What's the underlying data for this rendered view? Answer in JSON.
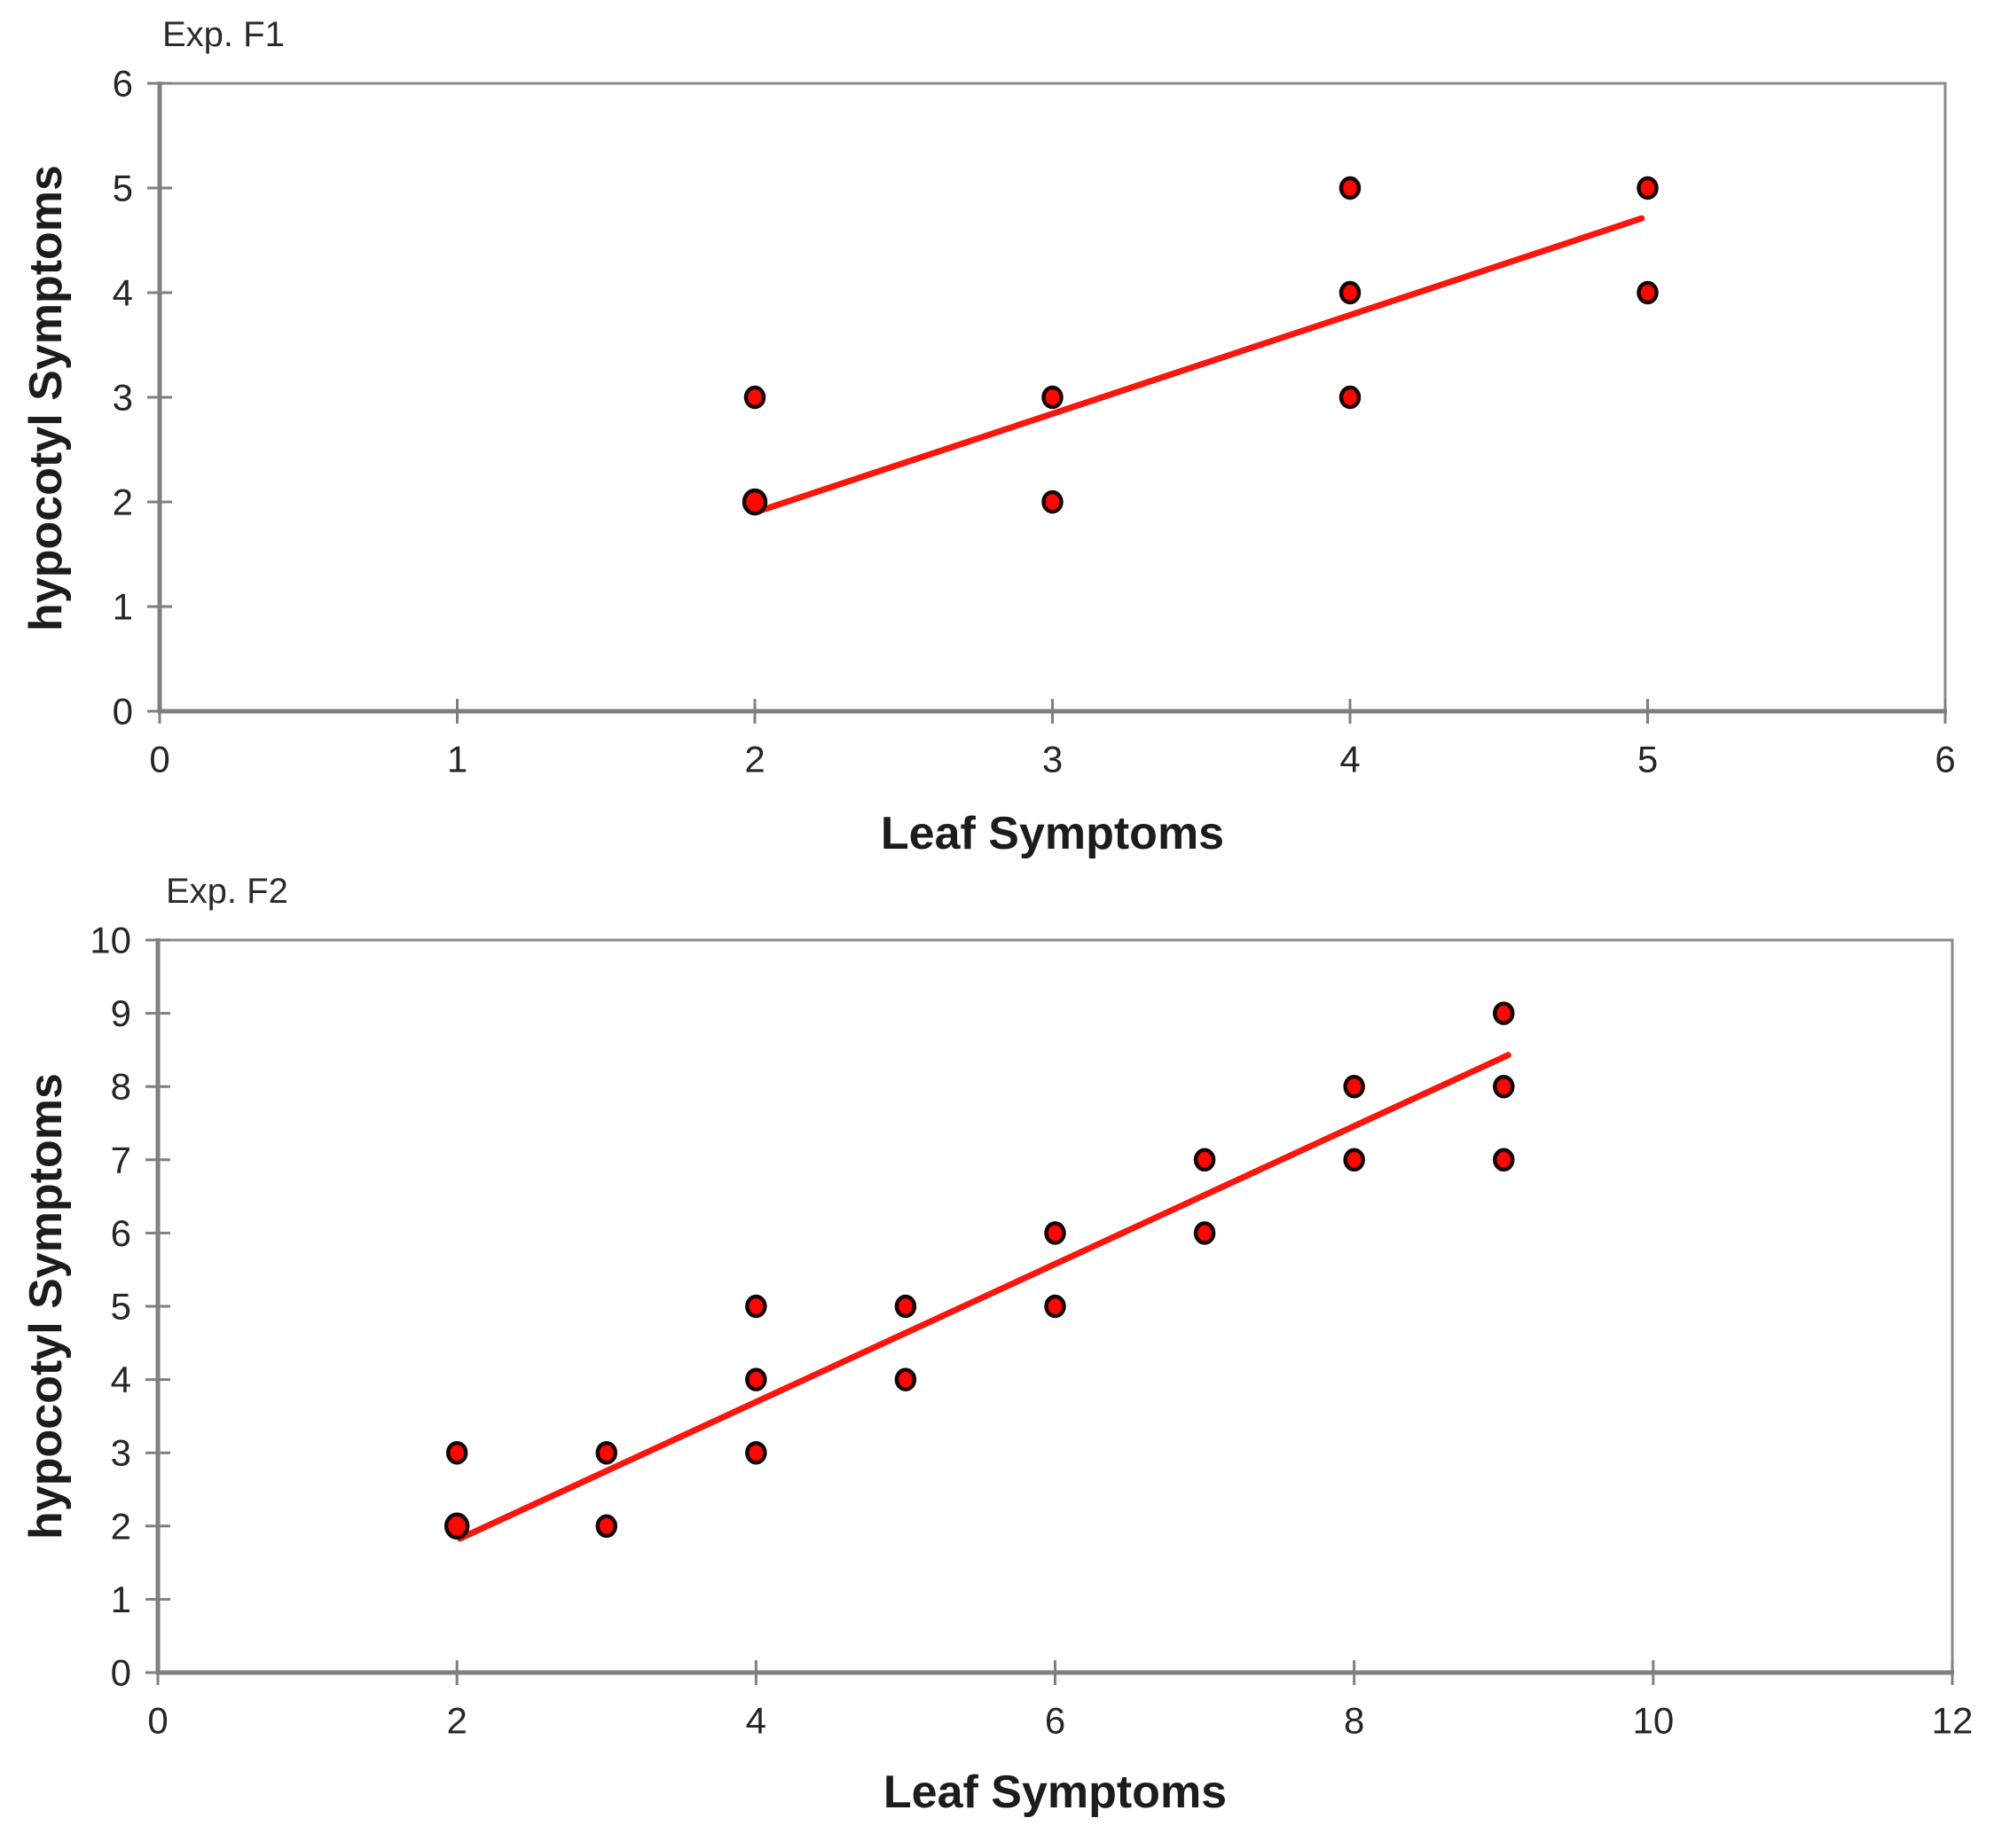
{
  "page": {
    "background": "#ffffff"
  },
  "styles": {
    "axis_color": "#7f7f7f",
    "plot_border_color": "#8a8a8a",
    "tick_label_color": "#262626",
    "title_color": "#2b2b2b",
    "axis_title_color": "#1c1c1c",
    "marker_fill": "#fe0602",
    "marker_edge": "#190404",
    "trend_color": "#fa150d"
  },
  "chart_data": [
    {
      "type": "scatter",
      "title": "Exp. F1",
      "xlabel": "Leaf Symptoms",
      "ylabel": "hypocotyl Symptoms",
      "xlim": [
        0,
        6
      ],
      "ylim": [
        0,
        6
      ],
      "xticks": [
        0,
        1,
        2,
        3,
        4,
        5,
        6
      ],
      "yticks": [
        0,
        1,
        2,
        3,
        4,
        5,
        6
      ],
      "grid": false,
      "legend_position": "none",
      "points": [
        [
          2,
          2,
          1
        ],
        [
          2,
          3
        ],
        [
          3,
          2
        ],
        [
          3,
          3
        ],
        [
          4,
          3
        ],
        [
          4,
          4
        ],
        [
          4,
          5
        ],
        [
          5,
          4
        ],
        [
          5,
          5
        ]
      ],
      "trendline": {
        "x1": 2.0,
        "y1": 1.9,
        "x2": 4.98,
        "y2": 4.71
      }
    },
    {
      "type": "scatter",
      "title": "Exp. F2",
      "xlabel": "Leaf Symptoms",
      "ylabel": "hypocotyl Symptoms",
      "xlim": [
        0,
        12
      ],
      "ylim": [
        0,
        10
      ],
      "xticks": [
        0,
        2,
        4,
        6,
        8,
        10,
        12
      ],
      "yticks": [
        0,
        1,
        2,
        3,
        4,
        5,
        6,
        7,
        8,
        9,
        10
      ],
      "grid": false,
      "legend_position": "none",
      "points": [
        [
          2,
          2,
          1
        ],
        [
          2,
          3
        ],
        [
          3,
          2
        ],
        [
          3,
          3
        ],
        [
          4,
          3
        ],
        [
          4,
          4
        ],
        [
          4,
          5
        ],
        [
          5,
          4
        ],
        [
          5,
          5
        ],
        [
          6,
          5
        ],
        [
          6,
          6
        ],
        [
          7,
          6
        ],
        [
          7,
          7
        ],
        [
          8,
          7
        ],
        [
          8,
          8
        ],
        [
          9,
          7
        ],
        [
          9,
          8
        ],
        [
          9,
          9
        ]
      ],
      "trendline": {
        "x1": 2.02,
        "y1": 1.83,
        "x2": 9.03,
        "y2": 8.43
      }
    }
  ]
}
